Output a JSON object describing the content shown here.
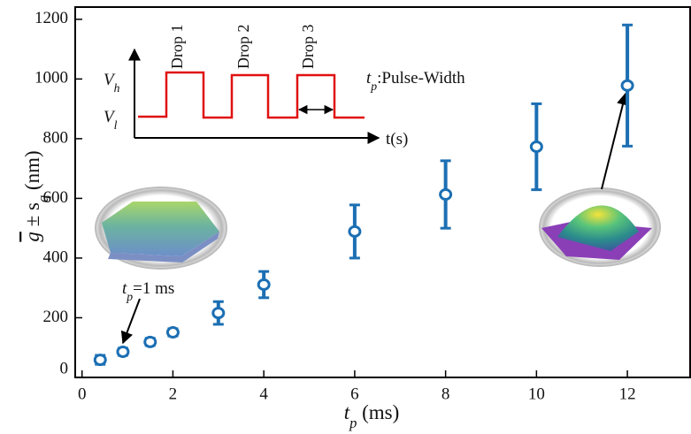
{
  "chart_data": {
    "type": "scatter",
    "x_label": [
      "t",
      "p",
      " (ms)"
    ],
    "y_label": [
      "g",
      " ± s",
      "q",
      " (nm)"
    ],
    "xlim": [
      -0.15,
      13.4
    ],
    "ylim": [
      0,
      1241
    ],
    "xticks": [
      0,
      2,
      4,
      6,
      8,
      10,
      12
    ],
    "yticks": [
      0,
      200,
      400,
      600,
      800,
      1000,
      1200
    ],
    "series": [
      {
        "color": "#1c6fb3",
        "x": [
          0.4,
          0.9,
          1.5,
          2,
          3,
          4,
          6,
          8,
          10,
          12
        ],
        "values": [
          59,
          86,
          119,
          151,
          216,
          311,
          489,
          613,
          773,
          978
        ],
        "errors": [
          15,
          12,
          12,
          12,
          38,
          44,
          89,
          113,
          144,
          203
        ]
      }
    ],
    "annotations": {
      "drops": [
        "Drop 1",
        "Drop 2",
        "Drop 3"
      ],
      "v_high": [
        "V",
        "h"
      ],
      "v_low": [
        "V",
        "l"
      ],
      "pulse_width": [
        "t",
        "p",
        ":Pulse-Width"
      ],
      "time_axis": "t(s)",
      "point_label": [
        "t",
        "p",
        "=1 ms"
      ]
    }
  }
}
